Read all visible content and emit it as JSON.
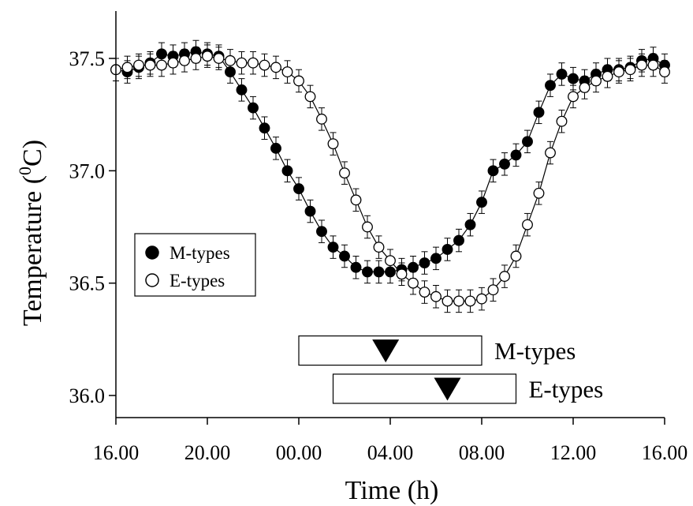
{
  "chart_data": {
    "type": "scatter",
    "xlabel": "Time (h)",
    "ylabel_prefix": "Temperature (",
    "ylabel_sup": "0",
    "ylabel_suffix": "C)",
    "xlim": [
      16,
      40
    ],
    "ylim": [
      35.9,
      37.65
    ],
    "x_ticks": [
      {
        "value": 16,
        "label": "16.00"
      },
      {
        "value": 20,
        "label": "20.00"
      },
      {
        "value": 24,
        "label": "00.00"
      },
      {
        "value": 28,
        "label": "04.00"
      },
      {
        "value": 32,
        "label": "08.00"
      },
      {
        "value": 36,
        "label": "12.00"
      },
      {
        "value": 40,
        "label": "16.00"
      }
    ],
    "y_ticks": [
      {
        "value": 36.0,
        "label": "36.0"
      },
      {
        "value": 36.5,
        "label": "36.5"
      },
      {
        "value": 37.0,
        "label": "37.0"
      },
      {
        "value": 37.5,
        "label": "37.5"
      }
    ],
    "grid": false,
    "legend_position": "middle-left",
    "error_bar": 0.05,
    "series": [
      {
        "name": "M-types",
        "marker": "filled-circle",
        "color": "#000000",
        "x": [
          16.0,
          16.5,
          17.0,
          17.5,
          18.0,
          18.5,
          19.0,
          19.5,
          20.0,
          20.5,
          21.0,
          21.5,
          22.0,
          22.5,
          23.0,
          23.5,
          24.0,
          24.5,
          25.0,
          25.5,
          26.0,
          26.5,
          27.0,
          27.5,
          28.0,
          28.5,
          29.0,
          29.5,
          30.0,
          30.5,
          31.0,
          31.5,
          32.0,
          32.5,
          33.0,
          33.5,
          34.0,
          34.5,
          35.0,
          35.5,
          36.0,
          36.5,
          37.0,
          37.5,
          38.0,
          38.5,
          39.0,
          39.5,
          40.0
        ],
        "y": [
          37.45,
          37.44,
          37.46,
          37.48,
          37.52,
          37.51,
          37.52,
          37.53,
          37.52,
          37.51,
          37.44,
          37.36,
          37.28,
          37.19,
          37.1,
          37.0,
          36.92,
          36.82,
          36.73,
          36.66,
          36.62,
          36.57,
          36.55,
          36.55,
          36.55,
          36.56,
          36.57,
          36.59,
          36.61,
          36.65,
          36.69,
          36.76,
          36.86,
          37.0,
          37.03,
          37.07,
          37.13,
          37.26,
          37.38,
          37.43,
          37.41,
          37.4,
          37.43,
          37.45,
          37.45,
          37.46,
          37.49,
          37.5,
          37.47
        ]
      },
      {
        "name": "E-types",
        "marker": "open-circle",
        "color": "#000000",
        "x": [
          16.0,
          16.5,
          17.0,
          17.5,
          18.0,
          18.5,
          19.0,
          19.5,
          20.0,
          20.5,
          21.0,
          21.5,
          22.0,
          22.5,
          23.0,
          23.5,
          24.0,
          24.5,
          25.0,
          25.5,
          26.0,
          26.5,
          27.0,
          27.5,
          28.0,
          28.5,
          29.0,
          29.5,
          30.0,
          30.5,
          31.0,
          31.5,
          32.0,
          32.5,
          33.0,
          33.5,
          34.0,
          34.5,
          35.0,
          35.5,
          36.0,
          36.5,
          37.0,
          37.5,
          38.0,
          38.5,
          39.0,
          39.5,
          40.0
        ],
        "y": [
          37.45,
          37.46,
          37.47,
          37.47,
          37.47,
          37.48,
          37.49,
          37.5,
          37.51,
          37.5,
          37.49,
          37.48,
          37.48,
          37.47,
          37.46,
          37.44,
          37.4,
          37.33,
          37.23,
          37.12,
          36.99,
          36.87,
          36.75,
          36.66,
          36.6,
          36.54,
          36.5,
          36.46,
          36.44,
          36.42,
          36.42,
          36.42,
          36.43,
          36.47,
          36.53,
          36.62,
          36.76,
          36.9,
          37.08,
          37.22,
          37.33,
          37.37,
          37.4,
          37.42,
          37.44,
          37.45,
          37.47,
          37.47,
          37.44
        ]
      }
    ],
    "phase_bars": [
      {
        "label": "M-types",
        "start": 24.0,
        "end": 32.0,
        "marker": 27.8,
        "y": 36.2
      },
      {
        "label": "E-types",
        "start": 25.5,
        "end": 33.5,
        "marker": 30.5,
        "y": 36.03
      }
    ]
  }
}
